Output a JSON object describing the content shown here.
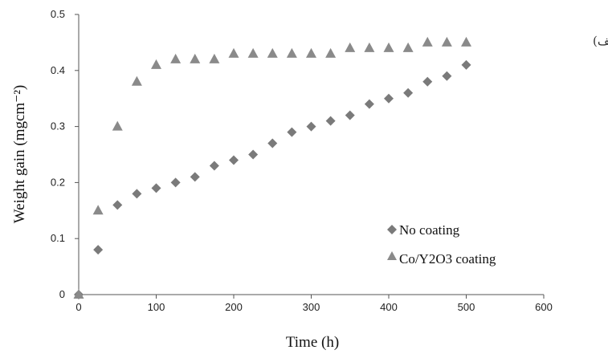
{
  "panel_label": "(الف)",
  "chart_data": {
    "type": "scatter",
    "xlabel": "Time (h)",
    "ylabel": "Weight gain (mgcm⁻²)",
    "xlim": [
      0,
      600
    ],
    "ylim": [
      0,
      0.5
    ],
    "xticks": [
      "0",
      "100",
      "200",
      "300",
      "400",
      "500",
      "600"
    ],
    "yticks": [
      "0",
      "0.1",
      "0.2",
      "0.3",
      "0.4",
      "0.5"
    ],
    "grid": false,
    "legend_position": "bottom-right",
    "series": [
      {
        "name": "No coating",
        "marker": "diamond",
        "color": "#7a7a7a",
        "x": [
          0,
          25,
          50,
          75,
          100,
          125,
          150,
          175,
          200,
          225,
          250,
          275,
          300,
          325,
          350,
          375,
          400,
          425,
          450,
          475,
          500
        ],
        "y": [
          0,
          0.08,
          0.16,
          0.18,
          0.19,
          0.2,
          0.21,
          0.23,
          0.24,
          0.25,
          0.27,
          0.29,
          0.3,
          0.31,
          0.32,
          0.34,
          0.35,
          0.36,
          0.38,
          0.39,
          0.41
        ]
      },
      {
        "name": "Co/Y2O3 coating",
        "marker": "triangle",
        "color": "#8a8a8a",
        "x": [
          0,
          25,
          50,
          75,
          100,
          125,
          150,
          175,
          200,
          225,
          250,
          275,
          300,
          325,
          350,
          375,
          400,
          425,
          450,
          475,
          500
        ],
        "y": [
          0,
          0.15,
          0.3,
          0.38,
          0.41,
          0.42,
          0.42,
          0.42,
          0.43,
          0.43,
          0.43,
          0.43,
          0.43,
          0.43,
          0.44,
          0.44,
          0.44,
          0.44,
          0.45,
          0.45,
          0.45
        ]
      }
    ]
  }
}
